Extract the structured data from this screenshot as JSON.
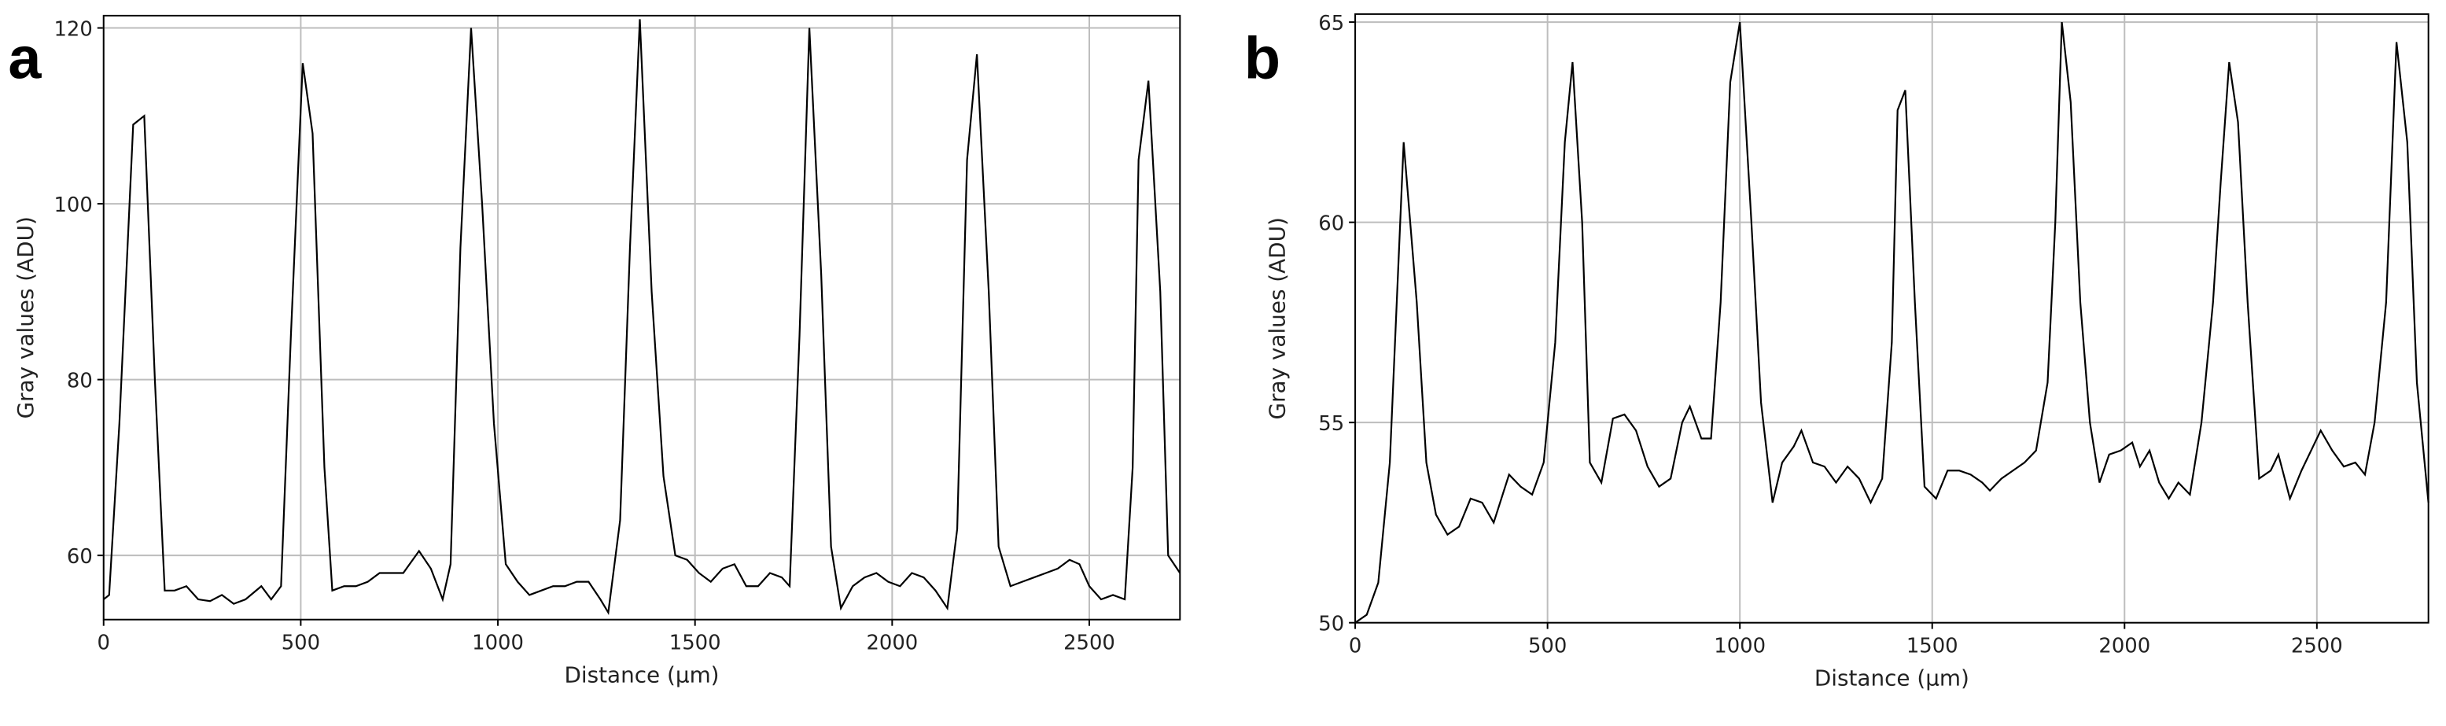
{
  "chart_data": [
    {
      "type": "line",
      "panel_label": "a",
      "x_label": "Distance (µm)",
      "y_label": "Gray values (ADU)",
      "color": "#000000",
      "grid": true,
      "xlim": [
        0,
        2730
      ],
      "ylim": [
        52.7,
        121.4
      ],
      "xticks": [
        0,
        500,
        1000,
        1500,
        2000,
        2500
      ],
      "yticks": [
        60,
        80,
        100,
        120
      ],
      "x": [
        0,
        14,
        40,
        75,
        103,
        130,
        155,
        180,
        210,
        240,
        270,
        300,
        330,
        360,
        400,
        425,
        450,
        475,
        505,
        530,
        560,
        580,
        610,
        640,
        670,
        700,
        730,
        760,
        800,
        830,
        860,
        880,
        905,
        932,
        960,
        990,
        1020,
        1050,
        1080,
        1110,
        1140,
        1170,
        1200,
        1230,
        1260,
        1280,
        1310,
        1335,
        1360,
        1390,
        1420,
        1450,
        1480,
        1510,
        1540,
        1570,
        1600,
        1630,
        1660,
        1690,
        1720,
        1740,
        1765,
        1790,
        1820,
        1845,
        1870,
        1900,
        1930,
        1960,
        1990,
        2020,
        2050,
        2080,
        2110,
        2140,
        2165,
        2190,
        2215,
        2245,
        2270,
        2300,
        2330,
        2360,
        2390,
        2420,
        2450,
        2475,
        2500,
        2530,
        2560,
        2590,
        2610,
        2625,
        2650,
        2680,
        2700,
        2730
      ],
      "values": [
        55,
        55.5,
        75,
        109,
        110,
        80,
        56,
        56,
        56.5,
        55,
        54.8,
        55.5,
        54.5,
        55,
        56.5,
        55,
        56.5,
        85,
        116,
        108,
        70,
        56,
        56.5,
        56.5,
        57,
        58,
        58,
        58,
        60.5,
        58.5,
        55,
        59,
        95,
        120,
        100,
        75,
        59,
        57,
        55.5,
        56,
        56.5,
        56.5,
        57,
        57,
        55,
        53.5,
        64,
        95,
        121,
        90,
        69,
        60,
        59.5,
        58,
        57,
        58.5,
        59,
        56.5,
        56.5,
        58,
        57.5,
        56.5,
        85,
        120,
        92,
        61,
        54,
        56.5,
        57.5,
        58,
        57,
        56.5,
        58,
        57.5,
        56,
        54,
        63,
        105,
        117,
        90,
        61,
        56.5,
        57,
        57.5,
        58,
        58.5,
        59.5,
        59,
        56.5,
        55,
        55.5,
        55,
        70,
        105,
        114,
        90,
        60,
        58
      ]
    },
    {
      "type": "line",
      "panel_label": "b",
      "x_label": "Distance (µm)",
      "y_label": "Gray values (ADU)",
      "color": "#000000",
      "grid": true,
      "xlim": [
        0,
        2790
      ],
      "ylim": [
        50,
        65.2
      ],
      "xticks": [
        0,
        500,
        1000,
        1500,
        2000,
        2500
      ],
      "yticks": [
        50,
        55,
        60,
        65
      ],
      "x": [
        0,
        30,
        60,
        90,
        126,
        160,
        185,
        210,
        240,
        270,
        300,
        330,
        360,
        400,
        430,
        460,
        490,
        520,
        545,
        565,
        590,
        610,
        640,
        670,
        700,
        730,
        760,
        790,
        820,
        850,
        870,
        900,
        925,
        950,
        975,
        1000,
        1030,
        1055,
        1085,
        1110,
        1140,
        1160,
        1190,
        1220,
        1250,
        1280,
        1310,
        1340,
        1370,
        1395,
        1410,
        1430,
        1455,
        1480,
        1510,
        1540,
        1570,
        1600,
        1630,
        1650,
        1680,
        1710,
        1740,
        1770,
        1800,
        1820,
        1837,
        1860,
        1885,
        1910,
        1935,
        1960,
        1990,
        2020,
        2040,
        2065,
        2090,
        2115,
        2140,
        2170,
        2200,
        2230,
        2250,
        2272,
        2295,
        2320,
        2350,
        2380,
        2400,
        2430,
        2460,
        2490,
        2510,
        2540,
        2570,
        2600,
        2625,
        2650,
        2680,
        2707,
        2735,
        2760,
        2790
      ],
      "values": [
        50,
        50.2,
        51,
        54,
        62,
        58,
        54,
        52.7,
        52.2,
        52.4,
        53.1,
        53,
        52.5,
        53.7,
        53.4,
        53.2,
        54,
        57,
        62,
        64,
        60,
        54,
        53.5,
        55.1,
        55.2,
        54.8,
        53.9,
        53.4,
        53.6,
        55,
        55.4,
        54.6,
        54.6,
        58,
        63.5,
        65,
        60,
        55.5,
        53,
        54,
        54.4,
        54.8,
        54,
        53.9,
        53.5,
        53.9,
        53.6,
        53,
        53.6,
        57,
        62.8,
        63.3,
        58,
        53.4,
        53.1,
        53.8,
        53.8,
        53.7,
        53.5,
        53.3,
        53.6,
        53.8,
        54,
        54.3,
        56,
        60,
        65,
        63,
        58,
        55,
        53.5,
        54.2,
        54.3,
        54.5,
        53.9,
        54.3,
        53.5,
        53.1,
        53.5,
        53.2,
        55,
        58,
        61,
        64,
        62.5,
        58,
        53.6,
        53.8,
        54.2,
        53.1,
        53.8,
        54.4,
        54.8,
        54.3,
        53.9,
        54,
        53.7,
        55,
        58,
        64.5,
        62,
        56,
        53
      ]
    }
  ]
}
